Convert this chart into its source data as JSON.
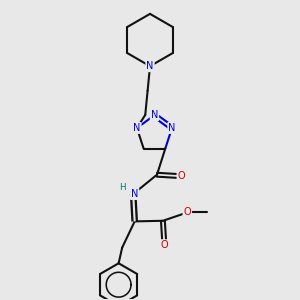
{
  "bg_color": "#e8e8e8",
  "bond_color": "#111111",
  "N_color": "#0000dd",
  "O_color": "#cc0000",
  "H_color": "#007777",
  "lw": 1.5,
  "fs": 7.0,
  "fig_w": 3.0,
  "fig_h": 3.0,
  "dpi": 100,
  "xlim": [
    0,
    10
  ],
  "ylim": [
    0,
    10
  ]
}
